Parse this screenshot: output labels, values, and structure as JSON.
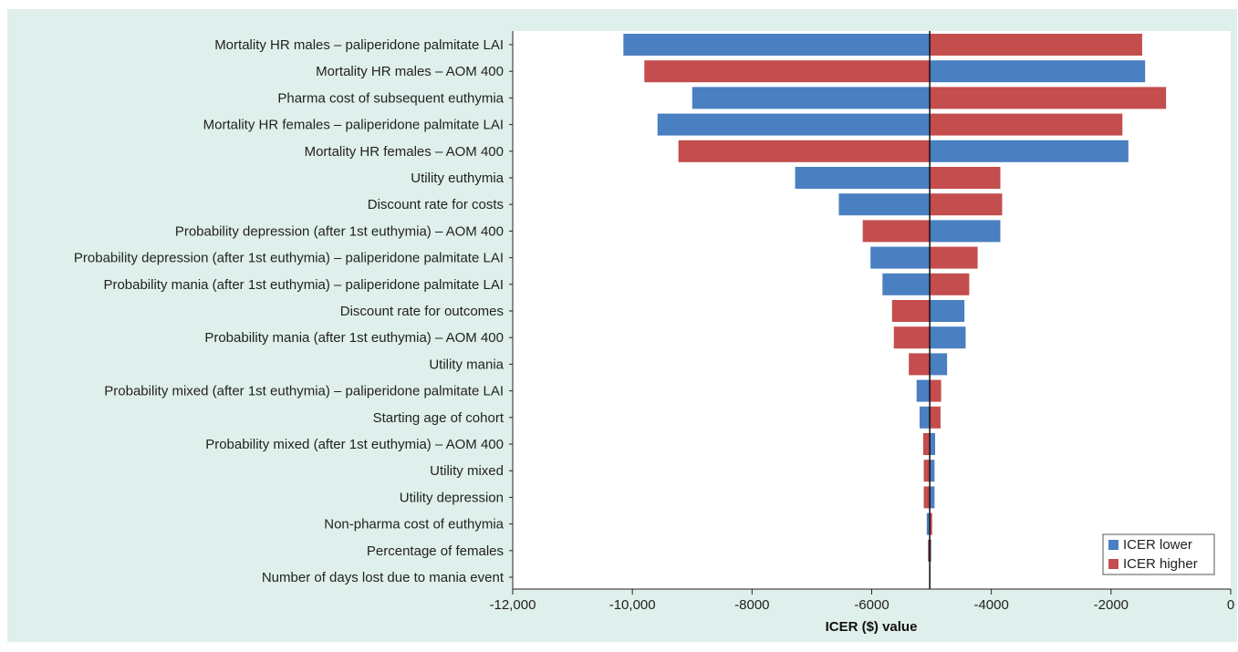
{
  "chart_data": {
    "type": "bar",
    "orientation": "horizontal",
    "chart_kind": "tornado",
    "title": "",
    "xlabel": "ICER ($) value",
    "ylabel": "",
    "xlim": [
      -12000,
      0
    ],
    "baseline": -5030,
    "x_ticks": [
      -12000,
      -10000,
      -8000,
      -6000,
      -4000,
      -2000,
      0
    ],
    "x_tick_labels": [
      "-12,000",
      "-10,000",
      "-8000",
      "-6000",
      "-4000",
      "-2000",
      "0"
    ],
    "grid": false,
    "legend_position": "bottom-right",
    "colors": {
      "lower": "#4a7fc1",
      "higher": "#c44d4d"
    },
    "series": [
      {
        "name": "ICER lower",
        "key": "lower"
      },
      {
        "name": "ICER higher",
        "key": "higher"
      }
    ],
    "parameters": [
      {
        "label": "Mortality HR males – paliperidone palmitate LAI",
        "left": -10150,
        "left_series": "lower",
        "right": -1480,
        "right_series": "higher"
      },
      {
        "label": "Mortality HR males – AOM 400",
        "left": -9800,
        "left_series": "higher",
        "right": -1430,
        "right_series": "lower"
      },
      {
        "label": "Pharma cost of subsequent euthymia",
        "left": -9000,
        "left_series": "lower",
        "right": -1080,
        "right_series": "higher"
      },
      {
        "label": "Mortality HR females – paliperidone palmitate LAI",
        "left": -9580,
        "left_series": "lower",
        "right": -1810,
        "right_series": "higher"
      },
      {
        "label": "Mortality HR females – AOM 400",
        "left": -9230,
        "left_series": "higher",
        "right": -1710,
        "right_series": "lower"
      },
      {
        "label": "Utility euthymia",
        "left": -7280,
        "left_series": "lower",
        "right": -3850,
        "right_series": "higher"
      },
      {
        "label": "Discount rate for costs",
        "left": -6550,
        "left_series": "lower",
        "right": -3820,
        "right_series": "higher"
      },
      {
        "label": "Probability depression (after 1st euthymia) – AOM 400",
        "left": -6150,
        "left_series": "higher",
        "right": -3850,
        "right_series": "lower"
      },
      {
        "label": "Probability depression (after 1st euthymia) – paliperidone palmitate LAI",
        "left": -6020,
        "left_series": "lower",
        "right": -4230,
        "right_series": "higher"
      },
      {
        "label": "Probability mania (after 1st euthymia) – paliperidone palmitate LAI",
        "left": -5820,
        "left_series": "lower",
        "right": -4370,
        "right_series": "higher"
      },
      {
        "label": "Discount rate for outcomes",
        "left": -5660,
        "left_series": "higher",
        "right": -4450,
        "right_series": "lower"
      },
      {
        "label": "Probability mania (after 1st euthymia) – AOM 400",
        "left": -5630,
        "left_series": "higher",
        "right": -4430,
        "right_series": "lower"
      },
      {
        "label": "Utility mania",
        "left": -5380,
        "left_series": "higher",
        "right": -4740,
        "right_series": "lower"
      },
      {
        "label": "Probability mixed (after 1st euthymia) – paliperidone palmitate LAI",
        "left": -5250,
        "left_series": "lower",
        "right": -4840,
        "right_series": "higher"
      },
      {
        "label": "Starting age of cohort",
        "left": -5200,
        "left_series": "lower",
        "right": -4850,
        "right_series": "higher"
      },
      {
        "label": "Probability mixed (after 1st euthymia) – AOM 400",
        "left": -5140,
        "left_series": "higher",
        "right": -4940,
        "right_series": "lower"
      },
      {
        "label": "Utility mixed",
        "left": -5130,
        "left_series": "higher",
        "right": -4950,
        "right_series": "lower"
      },
      {
        "label": "Utility depression",
        "left": -5130,
        "left_series": "higher",
        "right": -4950,
        "right_series": "lower"
      },
      {
        "label": "Non-pharma cost of euthymia",
        "left": -5080,
        "left_series": "lower",
        "right": -4990,
        "right_series": "higher"
      },
      {
        "label": "Percentage of females",
        "left": -5060,
        "left_series": "higher",
        "right": -5005,
        "right_series": "lower"
      },
      {
        "label": "Number of days lost due to mania event",
        "left": -5031,
        "left_series": "lower",
        "right": -5029,
        "right_series": "higher"
      }
    ]
  }
}
